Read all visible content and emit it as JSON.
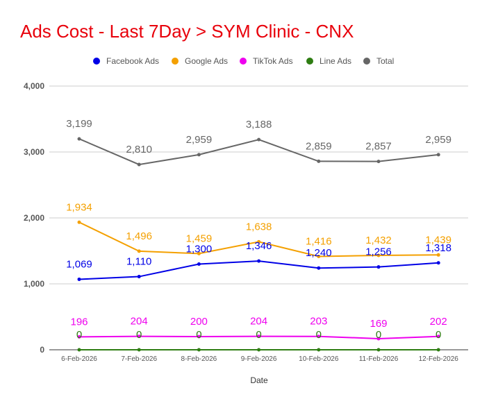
{
  "chart_data": {
    "type": "line",
    "title": "Ads Cost - Last 7Day > SYM Clinic - CNX",
    "xlabel": "Date",
    "ylabel": "",
    "categories": [
      "6-Feb-2026",
      "7-Feb-2026",
      "8-Feb-2026",
      "9-Feb-2026",
      "10-Feb-2026",
      "11-Feb-2026",
      "12-Feb-2026"
    ],
    "ylim": [
      0,
      4000
    ],
    "yticks": [
      0,
      1000,
      2000,
      3000,
      4000
    ],
    "ytick_labels": [
      "0",
      "1,000",
      "2,000",
      "3,000",
      "4,000"
    ],
    "grid": true,
    "legend_position": "top",
    "series": [
      {
        "name": "Facebook Ads",
        "color": "#0000e6",
        "values": [
          1069,
          1110,
          1300,
          1346,
          1240,
          1256,
          1318
        ],
        "labels": [
          "1,069",
          "1,110",
          "1,300",
          "1,346",
          "1,240",
          "1,256",
          "1,318"
        ]
      },
      {
        "name": "Google Ads",
        "color": "#f4a000",
        "values": [
          1934,
          1496,
          1459,
          1638,
          1416,
          1432,
          1439
        ],
        "labels": [
          "1,934",
          "1,496",
          "1,459",
          "1,638",
          "1,416",
          "1,432",
          "1,439"
        ]
      },
      {
        "name": "TikTok Ads",
        "color": "#ee00ee",
        "values": [
          196,
          204,
          200,
          204,
          203,
          169,
          202
        ],
        "labels": [
          "196",
          "204",
          "200",
          "204",
          "203",
          "169",
          "202"
        ]
      },
      {
        "name": "Line Ads",
        "color": "#2e7d12",
        "values": [
          0,
          0,
          0,
          0,
          0,
          0,
          0
        ],
        "labels": [
          "0",
          "0",
          "0",
          "0",
          "0",
          "0",
          "0"
        ]
      },
      {
        "name": "Total",
        "color": "#666666",
        "values": [
          3199,
          2810,
          2959,
          3188,
          2859,
          2857,
          2959
        ],
        "labels": [
          "3,199",
          "2,810",
          "2,959",
          "3,188",
          "2,859",
          "2,857",
          "2,959"
        ]
      }
    ]
  }
}
